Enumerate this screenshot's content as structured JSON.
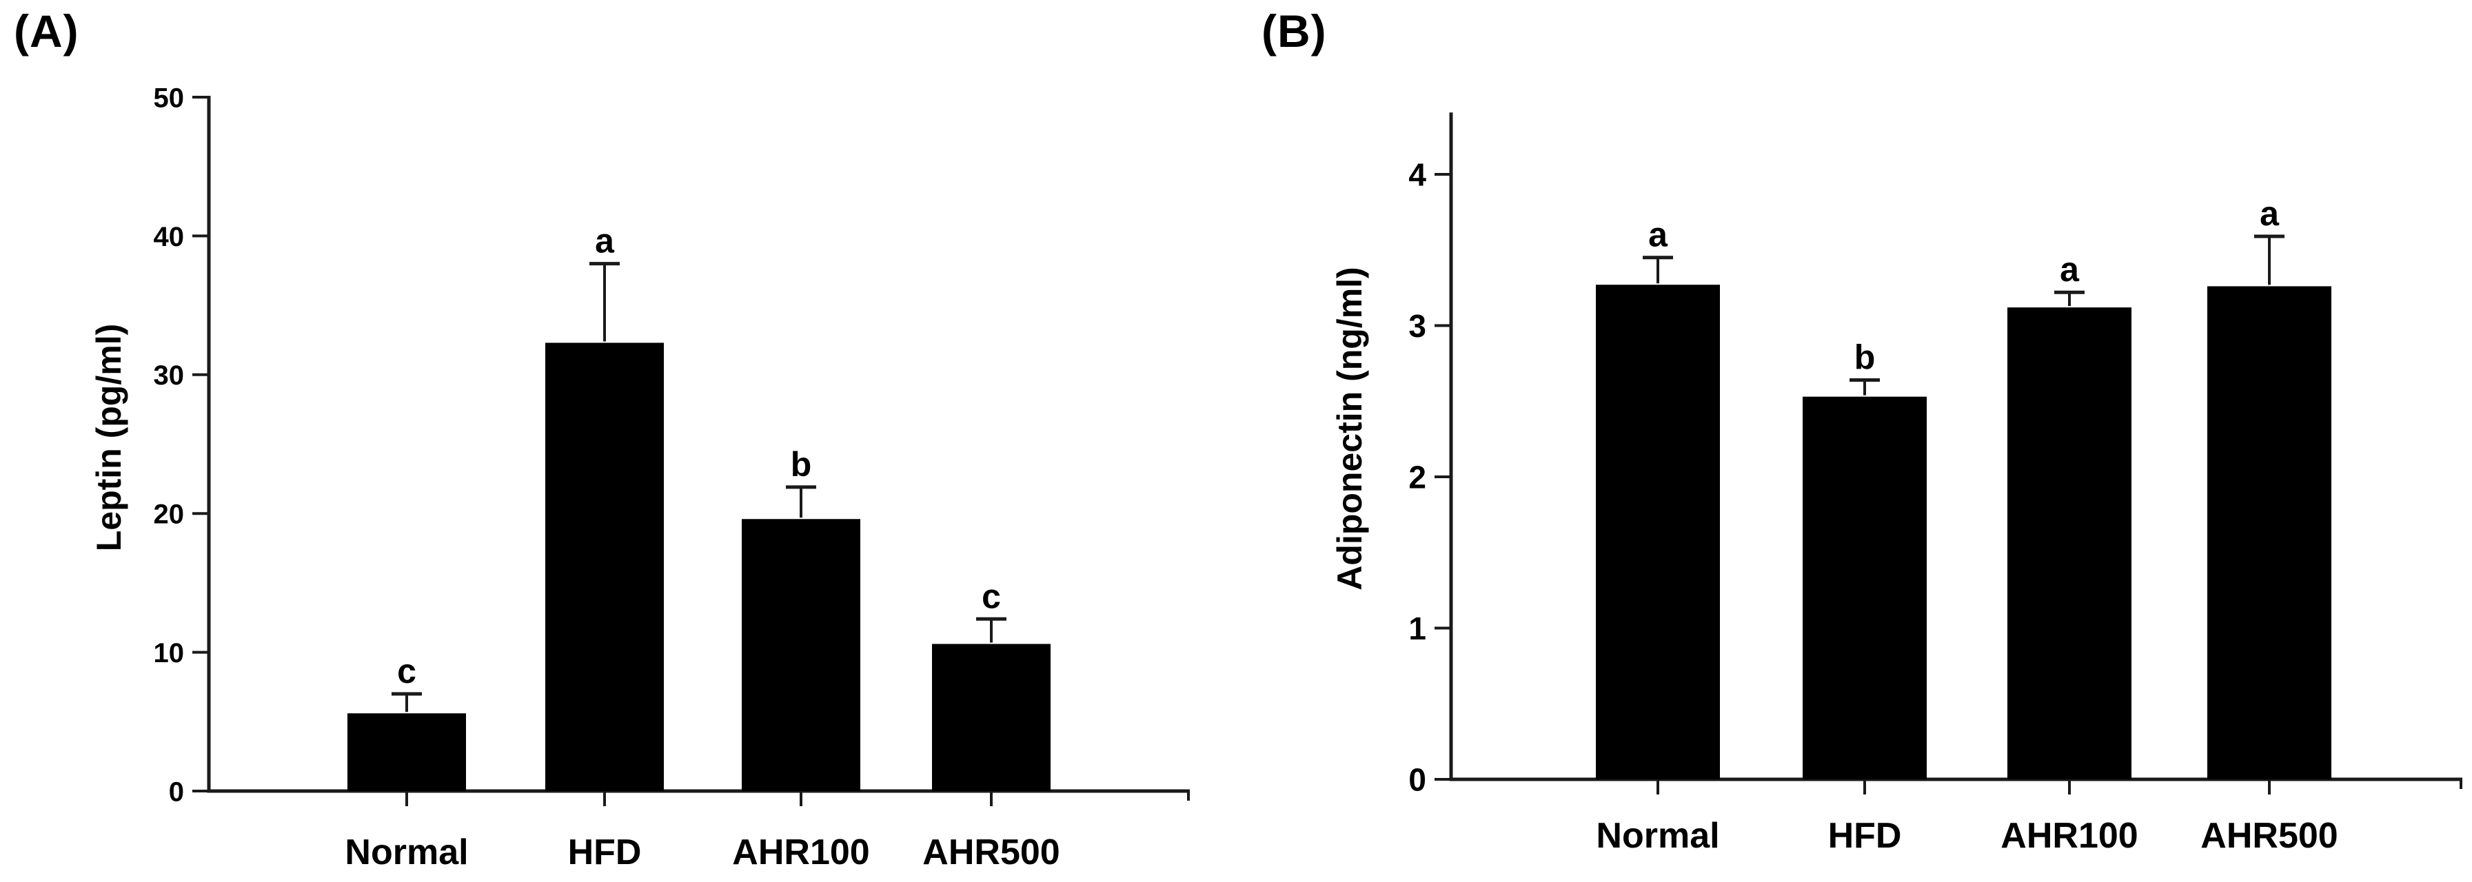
{
  "figure": {
    "background": "#ffffff",
    "foreground": "#000000"
  },
  "chart_data": [
    {
      "type": "bar",
      "panel_label": "(A)",
      "title": "",
      "xlabel": "",
      "ylabel": "Leptin (pg/ml)",
      "categories": [
        "Normal",
        "HFD",
        "AHR100",
        "AHR500"
      ],
      "values": [
        5.6,
        32.3,
        19.6,
        10.6
      ],
      "errors_plus": [
        1.4,
        5.7,
        2.3,
        1.8
      ],
      "sig_letters": [
        "c",
        "a",
        "b",
        "c"
      ],
      "yticks": [
        0,
        10,
        20,
        30,
        40,
        50
      ],
      "ylim": [
        0,
        50
      ],
      "bar_color": "#000000",
      "axis_color": "#1a1a1a",
      "legend": "none",
      "grid": "off"
    },
    {
      "type": "bar",
      "panel_label": "(B)",
      "title": "",
      "xlabel": "",
      "ylabel": "Adiponectin (ng/ml)",
      "categories": [
        "Normal",
        "HFD",
        "AHR100",
        "AHR500"
      ],
      "values": [
        3.27,
        2.53,
        3.12,
        3.26
      ],
      "errors_plus": [
        0.18,
        0.11,
        0.1,
        0.33
      ],
      "sig_letters": [
        "a",
        "b",
        "a",
        "a"
      ],
      "yticks": [
        0,
        1,
        2,
        3,
        4
      ],
      "ylim": [
        0,
        4.4
      ],
      "bar_color": "#000000",
      "axis_color": "#1a1a1a",
      "legend": "none",
      "grid": "off"
    }
  ]
}
